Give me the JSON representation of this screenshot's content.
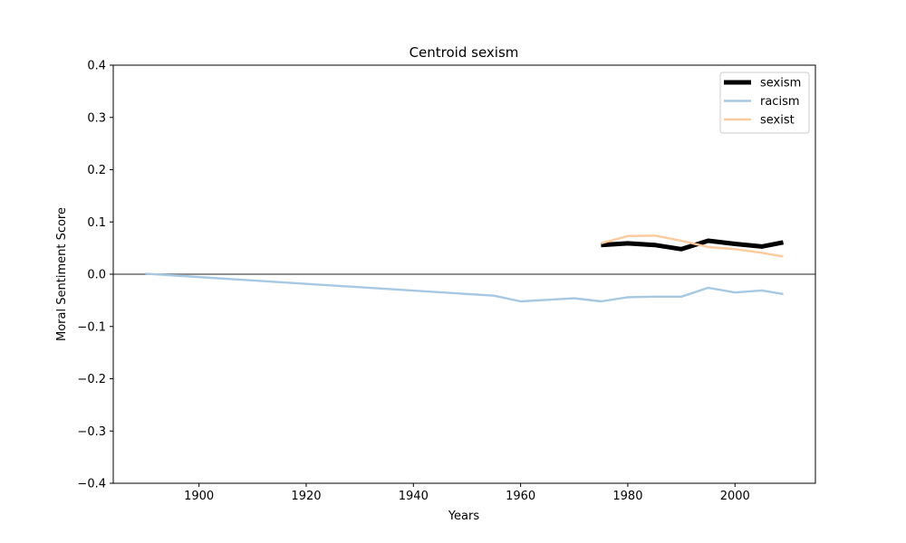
{
  "chart_data": {
    "type": "line",
    "title": "Centroid sexism",
    "xlabel": "Years",
    "ylabel": "Moral Sentiment Score",
    "xlim": [
      1884,
      2015
    ],
    "ylim": [
      -0.4,
      0.4
    ],
    "x_ticks": [
      1900,
      1920,
      1940,
      1960,
      1980,
      2000
    ],
    "y_ticks": [
      -0.4,
      -0.3,
      -0.2,
      -0.1,
      0.0,
      0.1,
      0.2,
      0.3,
      0.4
    ],
    "x_tick_labels": [
      "1900",
      "1920",
      "1940",
      "1960",
      "1980",
      "2000"
    ],
    "y_tick_labels": [
      "−0.4",
      "−0.3",
      "−0.2",
      "−0.1",
      "0.0",
      "0.1",
      "0.2",
      "0.3",
      "0.4"
    ],
    "reference_line": {
      "y": 0.0,
      "color": "#808080"
    },
    "grid": false,
    "legend_position": "top-right",
    "series": [
      {
        "name": "sexism",
        "color": "#000000",
        "emphasis": "thick",
        "points": [
          [
            1975,
            0.056
          ],
          [
            1980,
            0.059
          ],
          [
            1985,
            0.056
          ],
          [
            1990,
            0.048
          ],
          [
            1995,
            0.064
          ],
          [
            2000,
            0.058
          ],
          [
            2005,
            0.053
          ],
          [
            2009,
            0.061
          ]
        ]
      },
      {
        "name": "racism",
        "color": "#a6c8e3",
        "emphasis": "thin",
        "points": [
          [
            1890,
            0.001
          ],
          [
            1955,
            -0.041
          ],
          [
            1960,
            -0.052
          ],
          [
            1965,
            -0.049
          ],
          [
            1970,
            -0.046
          ],
          [
            1975,
            -0.052
          ],
          [
            1980,
            -0.044
          ],
          [
            1985,
            -0.043
          ],
          [
            1990,
            -0.043
          ],
          [
            1995,
            -0.026
          ],
          [
            2000,
            -0.035
          ],
          [
            2005,
            -0.031
          ],
          [
            2009,
            -0.038
          ]
        ]
      },
      {
        "name": "sexist",
        "color": "#fdca9c",
        "emphasis": "thin",
        "points": [
          [
            1975,
            0.059
          ],
          [
            1980,
            0.073
          ],
          [
            1985,
            0.074
          ],
          [
            1990,
            0.064
          ],
          [
            1995,
            0.052
          ],
          [
            2000,
            0.048
          ],
          [
            2005,
            0.041
          ],
          [
            2009,
            0.034
          ]
        ]
      }
    ]
  }
}
